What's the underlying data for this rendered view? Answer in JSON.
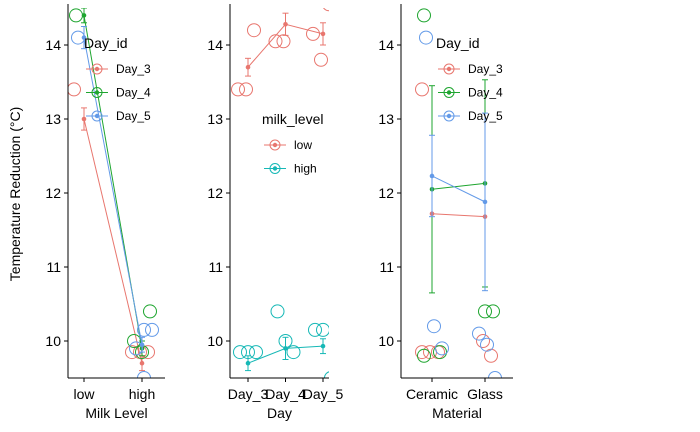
{
  "y_axis_label": "Temperature Reduction (°C)",
  "colors": {
    "red": "#E8766E",
    "green": "#1EA52F",
    "blue": "#639AE8",
    "teal": "#16B8B6",
    "axis": "#000000",
    "background": "#ffffff"
  },
  "chart_data": [
    {
      "type": "scatter",
      "panel": "milk-level",
      "xlabel": "Milk Level",
      "categories": [
        "low",
        "high"
      ],
      "ylim": [
        9.5,
        14.5
      ],
      "yticks": [
        10,
        11,
        12,
        13,
        14
      ],
      "legend": {
        "title": "Day_id",
        "labels": [
          "Day_3",
          "Day_4",
          "Day_5"
        ],
        "placement": "top-right"
      },
      "series": [
        {
          "name": "Day_3",
          "color": "red",
          "means": [
            13.0,
            9.7
          ],
          "errors": [
            0.15,
            0.1
          ],
          "points": [
            {
              "x": "low",
              "y": 13.4
            },
            {
              "x": "high",
              "y": 9.85
            },
            {
              "x": "high",
              "y": 9.85
            },
            {
              "x": "high",
              "y": 9.85
            }
          ]
        },
        {
          "name": "Day_4",
          "color": "green",
          "means": [
            14.4,
            9.9
          ],
          "errors": [
            0.1,
            0.1
          ],
          "points": [
            {
              "x": "low",
              "y": 14.4
            },
            {
              "x": "low",
              "y": 14.6
            },
            {
              "x": "high",
              "y": 10.4
            },
            {
              "x": "high",
              "y": 10.0
            },
            {
              "x": "high",
              "y": 9.85
            }
          ]
        },
        {
          "name": "Day_5",
          "color": "blue",
          "means": [
            14.1,
            9.95
          ],
          "errors": [
            0.15,
            0.1
          ],
          "points": [
            {
              "x": "low",
              "y": 14.1
            },
            {
              "x": "high",
              "y": 10.15
            },
            {
              "x": "high",
              "y": 10.15
            },
            {
              "x": "high",
              "y": 9.9
            },
            {
              "x": "high",
              "y": 9.5
            }
          ]
        }
      ]
    },
    {
      "type": "scatter",
      "panel": "day",
      "xlabel": "Day",
      "categories": [
        "Day_3",
        "Day_4",
        "Day_5"
      ],
      "ylim": [
        9.5,
        14.5
      ],
      "yticks": [
        10,
        11,
        12,
        13,
        14
      ],
      "legend": {
        "title": "milk_level",
        "labels": [
          "low",
          "high"
        ],
        "placement": "center"
      },
      "series": [
        {
          "name": "low",
          "color": "red",
          "means": [
            13.7,
            14.28,
            14.15
          ],
          "errors": [
            0.12,
            0.15,
            0.15
          ],
          "points": [
            {
              "x": "Day_3",
              "y": 13.4
            },
            {
              "x": "Day_3",
              "y": 13.4
            },
            {
              "x": "Day_3",
              "y": 14.2
            },
            {
              "x": "Day_4",
              "y": 14.05
            },
            {
              "x": "Day_4",
              "y": 14.05
            },
            {
              "x": "Day_4",
              "y": 14.6
            },
            {
              "x": "Day_5",
              "y": 14.15
            },
            {
              "x": "Day_5",
              "y": 13.8
            },
            {
              "x": "Day_5",
              "y": 14.55
            }
          ]
        },
        {
          "name": "high",
          "color": "teal",
          "means": [
            9.7,
            9.9,
            9.93
          ],
          "errors": [
            0.1,
            0.15,
            0.1
          ],
          "points": [
            {
              "x": "Day_3",
              "y": 9.85
            },
            {
              "x": "Day_3",
              "y": 9.85
            },
            {
              "x": "Day_3",
              "y": 9.85
            },
            {
              "x": "Day_4",
              "y": 10.4
            },
            {
              "x": "Day_4",
              "y": 10.0
            },
            {
              "x": "Day_4",
              "y": 9.85
            },
            {
              "x": "Day_5",
              "y": 10.15
            },
            {
              "x": "Day_5",
              "y": 10.15
            },
            {
              "x": "Day_5",
              "y": 9.5
            }
          ]
        }
      ]
    },
    {
      "type": "scatter",
      "panel": "material",
      "xlabel": "Material",
      "categories": [
        "Ceramic",
        "Glass"
      ],
      "ylim": [
        9.5,
        14.5
      ],
      "yticks": [
        10,
        11,
        12,
        13,
        14
      ],
      "legend": {
        "title": "Day_id",
        "labels": [
          "Day_3",
          "Day_4",
          "Day_5"
        ],
        "placement": "top-right"
      },
      "series": [
        {
          "name": "Day_3",
          "color": "red",
          "means": [
            11.72,
            11.68
          ],
          "errors": [
            0,
            0
          ],
          "points": [
            {
              "x": "Ceramic",
              "y": 13.4
            },
            {
              "x": "Ceramic",
              "y": 9.85
            },
            {
              "x": "Ceramic",
              "y": 9.85
            },
            {
              "x": "Ceramic",
              "y": 9.85
            },
            {
              "x": "Glass",
              "y": 10.0
            },
            {
              "x": "Glass",
              "y": 9.8
            }
          ]
        },
        {
          "name": "Day_4",
          "color": "green",
          "means": [
            12.05,
            12.13
          ],
          "errors": [
            1.4,
            1.4
          ],
          "points": [
            {
              "x": "Ceramic",
              "y": 14.4
            },
            {
              "x": "Ceramic",
              "y": 14.6
            },
            {
              "x": "Ceramic",
              "y": 9.85
            },
            {
              "x": "Ceramic",
              "y": 9.8
            },
            {
              "x": "Glass",
              "y": 10.4
            },
            {
              "x": "Glass",
              "y": 10.4
            }
          ]
        },
        {
          "name": "Day_5",
          "color": "blue",
          "means": [
            12.23,
            11.88
          ],
          "errors": [
            0.55,
            1.2
          ],
          "points": [
            {
              "x": "Ceramic",
              "y": 14.1
            },
            {
              "x": "Ceramic",
              "y": 10.2
            },
            {
              "x": "Ceramic",
              "y": 9.9
            },
            {
              "x": "Glass",
              "y": 10.1
            },
            {
              "x": "Glass",
              "y": 9.95
            },
            {
              "x": "Glass",
              "y": 9.5
            }
          ]
        }
      ]
    }
  ]
}
